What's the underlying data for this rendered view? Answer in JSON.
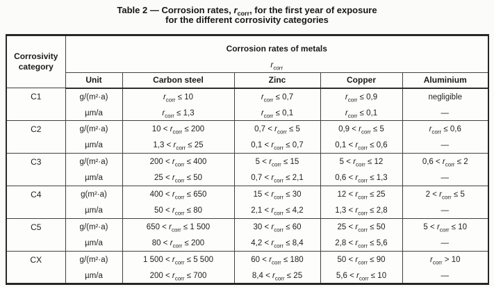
{
  "title": {
    "line1": "Table 2 — Corrosion rates, r_corr, for the first year of exposure",
    "line2": "for the different corrosivity categories"
  },
  "table": {
    "corner_header": "Corrosivity category",
    "group_header": "Corrosion rates of metals",
    "group_subheader": "r_corr",
    "columns": [
      "Unit",
      "Carbon steel",
      "Zinc",
      "Copper",
      "Aluminium"
    ],
    "rows": [
      {
        "category": "C1",
        "units": [
          "g/(m²·a)",
          "µm/a"
        ],
        "carbon_steel": [
          "r_corr ≤ 10",
          "r_corr ≤ 1,3"
        ],
        "zinc": [
          "r_corr ≤ 0,7",
          "r_corr ≤ 0,1"
        ],
        "copper": [
          "r_corr ≤ 0,9",
          "r_corr ≤ 0,1"
        ],
        "aluminium": [
          "negligible",
          "—"
        ]
      },
      {
        "category": "C2",
        "units": [
          "g/(m²·a)",
          "µm/a"
        ],
        "carbon_steel": [
          "10 < r_corr ≤ 200",
          "1,3 < r_corr ≤ 25"
        ],
        "zinc": [
          "0,7 < r_corr ≤ 5",
          "0,1 < r_corr ≤ 0,7"
        ],
        "copper": [
          "0,9 < r_corr ≤ 5",
          "0,1 < r_corr ≤ 0,6"
        ],
        "aluminium": [
          "r_corr ≤ 0,6",
          "—"
        ]
      },
      {
        "category": "C3",
        "units": [
          "g/(m²·a)",
          "µm/a"
        ],
        "carbon_steel": [
          "200 < r_corr ≤ 400",
          "25 < r_corr ≤ 50"
        ],
        "zinc": [
          "5 < r_corr ≤ 15",
          "0,7 < r_corr ≤ 2,1"
        ],
        "copper": [
          "5 < r_corr ≤ 12",
          "0,6 < r_corr ≤ 1,3"
        ],
        "aluminium": [
          "0,6 < r_corr ≤ 2",
          "—"
        ]
      },
      {
        "category": "C4",
        "units": [
          "g(m²·a)",
          "µm/a"
        ],
        "carbon_steel": [
          "400 < r_corr ≤ 650",
          "50 < r_corr ≤ 80"
        ],
        "zinc": [
          "15 < r_corr ≤ 30",
          "2,1 < r_corr ≤ 4,2"
        ],
        "copper": [
          "12 < r_corr ≤ 25",
          "1,3 < r_corr ≤ 2,8"
        ],
        "aluminium": [
          "2 < r_corr ≤ 5",
          "—"
        ]
      },
      {
        "category": "C5",
        "units": [
          "g/(m²·a)",
          "µm/a"
        ],
        "carbon_steel": [
          "650 < r_corr ≤ 1 500",
          "80 < r_corr ≤ 200"
        ],
        "zinc": [
          "30 < r_corr ≤ 60",
          "4,2 < r_corr ≤ 8,4"
        ],
        "copper": [
          "25 < r_corr ≤ 50",
          "2,8 < r_corr ≤ 5,6"
        ],
        "aluminium": [
          "5 < r_corr ≤ 10",
          "—"
        ]
      },
      {
        "category": "CX",
        "units": [
          "g/(m²·a)",
          "µm/a"
        ],
        "carbon_steel": [
          "1 500 < r_corr ≤ 5 500",
          "200 < r_corr ≤ 700"
        ],
        "zinc": [
          "60 < r_corr ≤ 180",
          "8,4 < r_corr ≤ 25"
        ],
        "copper": [
          "50 < r_corr ≤ 90",
          "5,6 < r_corr ≤ 10"
        ],
        "aluminium": [
          "r_corr > 10",
          "—"
        ]
      }
    ]
  }
}
